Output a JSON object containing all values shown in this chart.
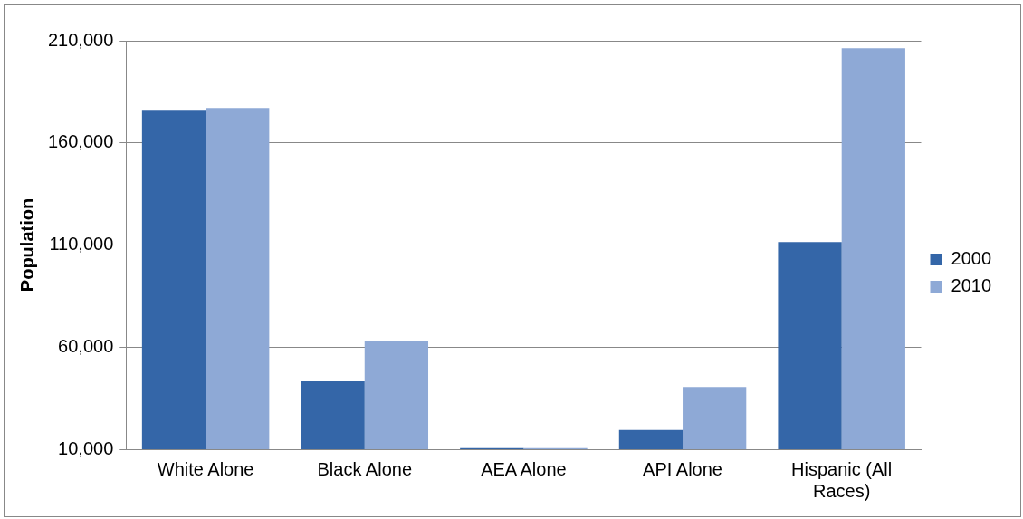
{
  "chart_data": {
    "type": "bar",
    "ylabel": "Population",
    "categories": [
      "White Alone",
      "Black Alone",
      "AEA Alone",
      "API Alone",
      "Hispanic (All Races)"
    ],
    "series": [
      {
        "name": "2000",
        "color": "#3466a8",
        "values": [
          176200,
          43300,
          10500,
          19400,
          111400
        ]
      },
      {
        "name": "2010",
        "color": "#8ea9d6",
        "values": [
          177100,
          63000,
          10500,
          40500,
          206300
        ]
      }
    ],
    "ylim": [
      10000,
      210000
    ],
    "yticks": [
      {
        "value": 10000,
        "label": "10,000"
      },
      {
        "value": 60000,
        "label": "60,000"
      },
      {
        "value": 110000,
        "label": "110,000"
      },
      {
        "value": 160000,
        "label": "160,000"
      },
      {
        "value": 210000,
        "label": "210,000"
      }
    ],
    "grid": "y",
    "legend": "right"
  }
}
